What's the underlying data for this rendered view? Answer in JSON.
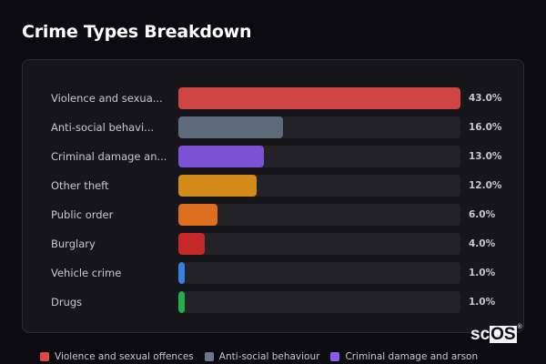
{
  "title": "Crime Types Breakdown",
  "rows": [
    {
      "label": "Violence and sexua...",
      "full_label": "Violence and sexual offences",
      "value": 43.0,
      "pct": "43.0%",
      "color": "#d04444",
      "width": "100%"
    },
    {
      "label": "Anti-social behavi...",
      "full_label": "Anti-social behaviour",
      "value": 16.0,
      "pct": "16.0%",
      "color": "#5f6b7a",
      "width": "37.2%"
    },
    {
      "label": "Criminal damage an...",
      "full_label": "Criminal damage and arson",
      "value": 13.0,
      "pct": "13.0%",
      "color": "#7b52d4",
      "width": "30.2%"
    },
    {
      "label": "Other theft",
      "full_label": "Other theft",
      "value": 12.0,
      "pct": "12.0%",
      "color": "#d48b1a",
      "width": "27.9%"
    },
    {
      "label": "Public order",
      "full_label": "Public order",
      "value": 6.0,
      "pct": "6.0%",
      "color": "#dc6e1e",
      "width": "14.0%"
    },
    {
      "label": "Burglary",
      "full_label": "Burglary",
      "value": 4.0,
      "pct": "4.0%",
      "color": "#c42828",
      "width": "9.3%"
    },
    {
      "label": "Vehicle crime",
      "full_label": "Vehicle crime",
      "value": 1.0,
      "pct": "1.0%",
      "color": "#3b7de0",
      "width": "2.3%"
    },
    {
      "label": "Drugs",
      "full_label": "Drugs",
      "value": 1.0,
      "pct": "1.0%",
      "color": "#22b04c",
      "width": "2.3%"
    }
  ],
  "legend": [
    {
      "label": "Violence and sexual offences",
      "color": "#e04848"
    },
    {
      "label": "Anti-social behaviour",
      "color": "#6b7789"
    },
    {
      "label": "Criminal damage and arson",
      "color": "#8a5cf0"
    }
  ],
  "watermark": {
    "prefix": "sc",
    "boxed": "OS",
    "mark": "®"
  },
  "chart_data": {
    "type": "bar",
    "orientation": "horizontal",
    "title": "Crime Types Breakdown",
    "categories": [
      "Violence and sexual offences",
      "Anti-social behaviour",
      "Criminal damage and arson",
      "Other theft",
      "Public order",
      "Burglary",
      "Vehicle crime",
      "Drugs"
    ],
    "values": [
      43.0,
      16.0,
      13.0,
      12.0,
      6.0,
      4.0,
      1.0,
      1.0
    ],
    "unit": "%",
    "xlabel": "",
    "ylabel": "",
    "xlim": [
      0,
      43
    ],
    "grid": false,
    "data_labels": [
      "43.0%",
      "16.0%",
      "13.0%",
      "12.0%",
      "6.0%",
      "4.0%",
      "1.0%",
      "1.0%"
    ],
    "colors": [
      "#d04444",
      "#5f6b7a",
      "#7b52d4",
      "#d48b1a",
      "#dc6e1e",
      "#c42828",
      "#3b7de0",
      "#22b04c"
    ],
    "legend": {
      "position": "bottom",
      "entries": [
        "Violence and sexual offences",
        "Anti-social behaviour",
        "Criminal damage and arson"
      ]
    }
  }
}
